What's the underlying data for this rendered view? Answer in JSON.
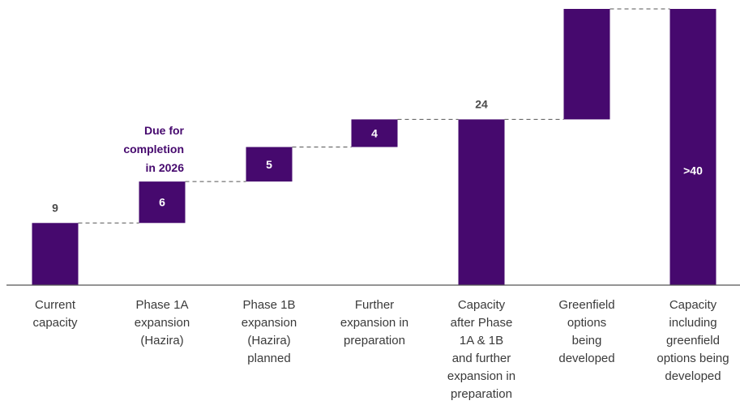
{
  "chart_data": {
    "type": "bar",
    "subtype": "waterfall",
    "categories": [
      [
        "Current",
        "capacity"
      ],
      [
        "Phase 1A",
        "expansion",
        "(Hazira)"
      ],
      [
        "Phase 1B",
        "expansion",
        "(Hazira)",
        "planned"
      ],
      [
        "Further",
        "expansion in",
        "preparation"
      ],
      [
        "Capacity",
        "after Phase",
        "1A & 1B",
        "and further",
        "expansion in",
        "preparation"
      ],
      [
        "Greenfield",
        "options",
        "being",
        "developed"
      ],
      [
        "Capacity",
        "including",
        "greenfield",
        "options being",
        "developed"
      ]
    ],
    "bars": [
      {
        "start": 0,
        "end": 9,
        "kind": "total",
        "label": "9"
      },
      {
        "start": 9,
        "end": 15,
        "kind": "increment",
        "label": "6"
      },
      {
        "start": 15,
        "end": 20,
        "kind": "increment",
        "label": "5"
      },
      {
        "start": 20,
        "end": 24,
        "kind": "increment",
        "label": "4"
      },
      {
        "start": 0,
        "end": 24,
        "kind": "total",
        "label": "24"
      },
      {
        "start": 24,
        "end": 40,
        "kind": "increment",
        "label": ""
      },
      {
        "start": 0,
        "end": 40,
        "kind": "total",
        "label": ">40"
      }
    ],
    "ylim": [
      0,
      40
    ],
    "annotation": {
      "lines": [
        "Due for",
        "completion",
        "in 2026"
      ],
      "category_index": 1
    },
    "colors": {
      "bar": "#46096e",
      "bar_label_inside": "#ffffff",
      "bar_label_outside": "#4a4a4a",
      "annotation": "#46096e",
      "connector": "#555555",
      "axis": "#555555"
    },
    "grid": false,
    "legend": "none"
  }
}
